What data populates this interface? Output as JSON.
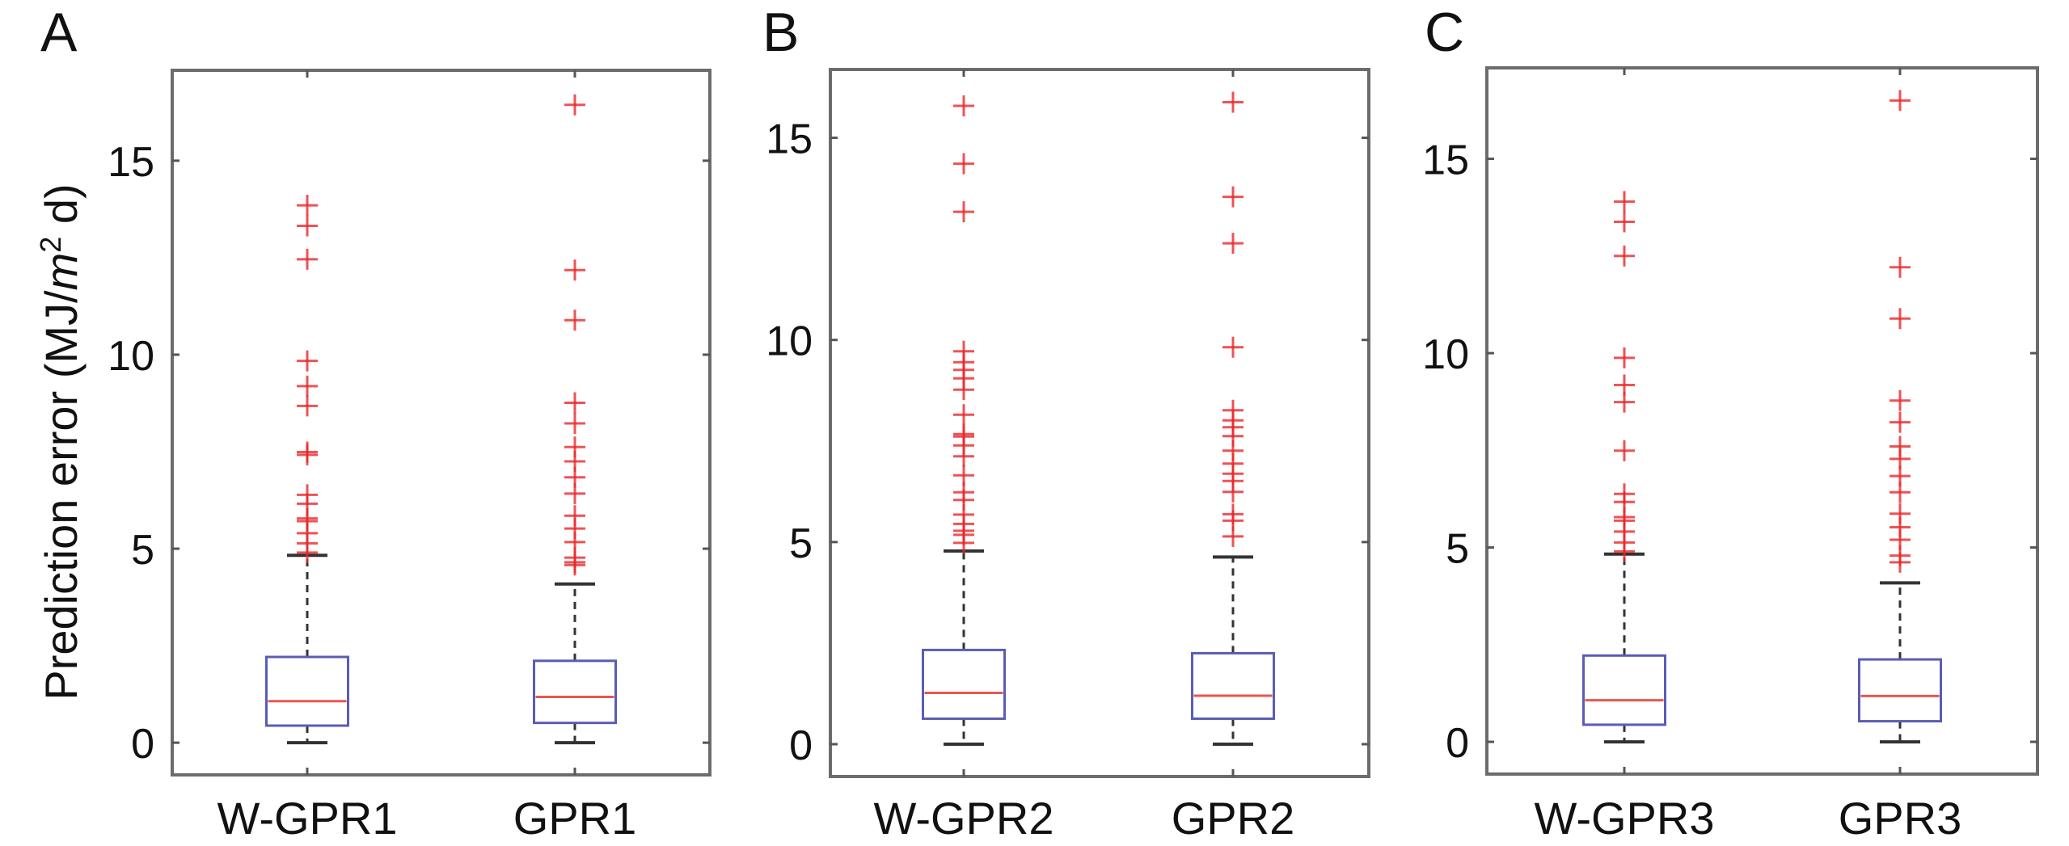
{
  "figure": {
    "y_title": {
      "prefix": "Prediction error (MJ/",
      "italic": "m",
      "sup": "2",
      "suffix": " d)"
    }
  },
  "chart_data": [
    {
      "type": "box",
      "panel": "A",
      "ylabel": "Prediction error (MJ/m² d)",
      "ylim": [
        -0.83,
        17.33
      ],
      "yticks": [
        0,
        5,
        10,
        15
      ],
      "categories": [
        "W-GPR1",
        "GPR1"
      ],
      "series": [
        {
          "name": "W-GPR1",
          "q1": 0.44,
          "median": 1.07,
          "q3": 2.21,
          "whisker_low": 0,
          "whisker_high": 4.83,
          "outliers": [
            13.85,
            13.32,
            12.46,
            9.84,
            9.19,
            8.68,
            7.49,
            7.42,
            6.39,
            6.16,
            5.78,
            5.71,
            5.4,
            5.14,
            4.9
          ]
        },
        {
          "name": "GPR1",
          "q1": 0.51,
          "median": 1.18,
          "q3": 2.11,
          "whisker_low": 0,
          "whisker_high": 4.09,
          "outliers": [
            16.44,
            12.18,
            10.89,
            8.76,
            8.23,
            7.62,
            7.25,
            6.84,
            6.42,
            5.85,
            5.52,
            5.17,
            4.77,
            4.65,
            4.58
          ]
        }
      ]
    },
    {
      "type": "box",
      "panel": "B",
      "ylabel": "",
      "ylim": [
        -0.8,
        16.69
      ],
      "yticks": [
        0,
        5,
        10,
        15
      ],
      "categories": [
        "W-GPR2",
        "GPR2"
      ],
      "series": [
        {
          "name": "W-GPR2",
          "q1": 0.63,
          "median": 1.27,
          "q3": 2.33,
          "whisker_low": 0,
          "whisker_high": 4.78,
          "outliers": [
            15.79,
            14.36,
            13.17,
            9.72,
            9.45,
            9.26,
            9.05,
            8.77,
            8.15,
            7.67,
            7.61,
            7.39,
            7.12,
            6.65,
            6.23,
            6.04,
            5.68,
            5.45,
            5.28,
            5.18,
            4.98
          ]
        },
        {
          "name": "GPR2",
          "q1": 0.63,
          "median": 1.2,
          "q3": 2.25,
          "whisker_low": 0,
          "whisker_high": 4.63,
          "outliers": [
            15.88,
            13.54,
            12.39,
            9.82,
            8.26,
            8.01,
            7.84,
            7.62,
            7.26,
            6.94,
            6.69,
            6.51,
            6.24,
            5.69,
            5.53,
            5.14
          ]
        }
      ]
    },
    {
      "type": "box",
      "panel": "C",
      "ylabel": "",
      "ylim": [
        -0.83,
        17.34
      ],
      "yticks": [
        0,
        5,
        10,
        15
      ],
      "categories": [
        "W-GPR3",
        "GPR3"
      ],
      "series": [
        {
          "name": "W-GPR3",
          "q1": 0.44,
          "median": 1.07,
          "q3": 2.22,
          "whisker_low": 0,
          "whisker_high": 4.83,
          "outliers": [
            13.9,
            13.38,
            12.5,
            9.88,
            9.18,
            8.74,
            7.49,
            6.38,
            6.17,
            5.78,
            5.69,
            5.41,
            5.13,
            4.9
          ]
        },
        {
          "name": "GPR3",
          "q1": 0.53,
          "median": 1.18,
          "q3": 2.12,
          "whisker_low": 0,
          "whisker_high": 4.09,
          "outliers": [
            16.5,
            12.21,
            10.89,
            8.78,
            8.22,
            7.6,
            7.28,
            6.84,
            6.42,
            5.87,
            5.52,
            5.2,
            4.79,
            4.62
          ]
        }
      ]
    }
  ]
}
